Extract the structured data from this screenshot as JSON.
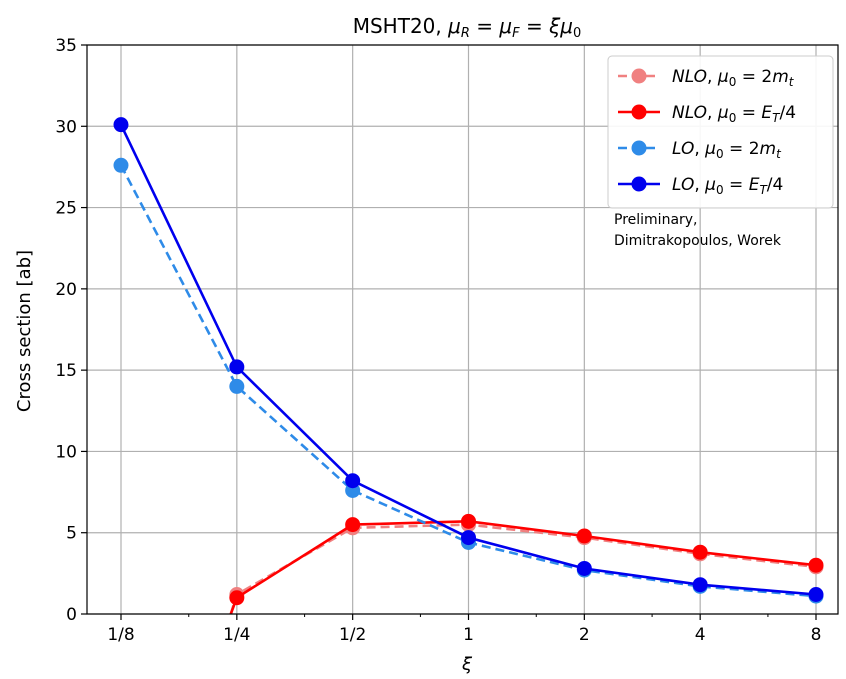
{
  "chart_data": {
    "type": "line",
    "title": "MSHT20, μR = μF = ξμ0",
    "xlabel": "ξ",
    "ylabel": "Cross section [ab]",
    "x_scale": "log2",
    "categories": [
      "1/8",
      "1/4",
      "1/2",
      "1",
      "2",
      "4",
      "8"
    ],
    "x": [
      0.125,
      0.25,
      0.5,
      1,
      2,
      4,
      8
    ],
    "ylim": [
      0,
      35
    ],
    "yticks": [
      0,
      5,
      10,
      15,
      20,
      25,
      30,
      35
    ],
    "grid": true,
    "legend_position": "top-right",
    "series": [
      {
        "name": "NLO, μ0 = 2mt",
        "color": "#f08080",
        "style": "dashed",
        "values": [
          null,
          1.2,
          5.3,
          5.5,
          4.7,
          3.7,
          2.9
        ]
      },
      {
        "name": "NLO, μ0 = ET/4",
        "color": "#ff0000",
        "style": "solid",
        "values": [
          null,
          1.0,
          5.5,
          5.7,
          4.8,
          3.8,
          3.0
        ]
      },
      {
        "name": "LO, μ0 = 2mt",
        "color": "#2e8be8",
        "style": "dashed",
        "values": [
          27.6,
          14.0,
          7.6,
          4.4,
          2.7,
          1.7,
          1.1
        ]
      },
      {
        "name": "LO, μ0 = ET/4",
        "color": "#0000ee",
        "style": "solid",
        "values": [
          30.1,
          15.2,
          8.2,
          4.7,
          2.8,
          1.8,
          1.2
        ]
      }
    ],
    "annotation": [
      "Preliminary,",
      "Dimitrakopoulos, Worek"
    ]
  }
}
